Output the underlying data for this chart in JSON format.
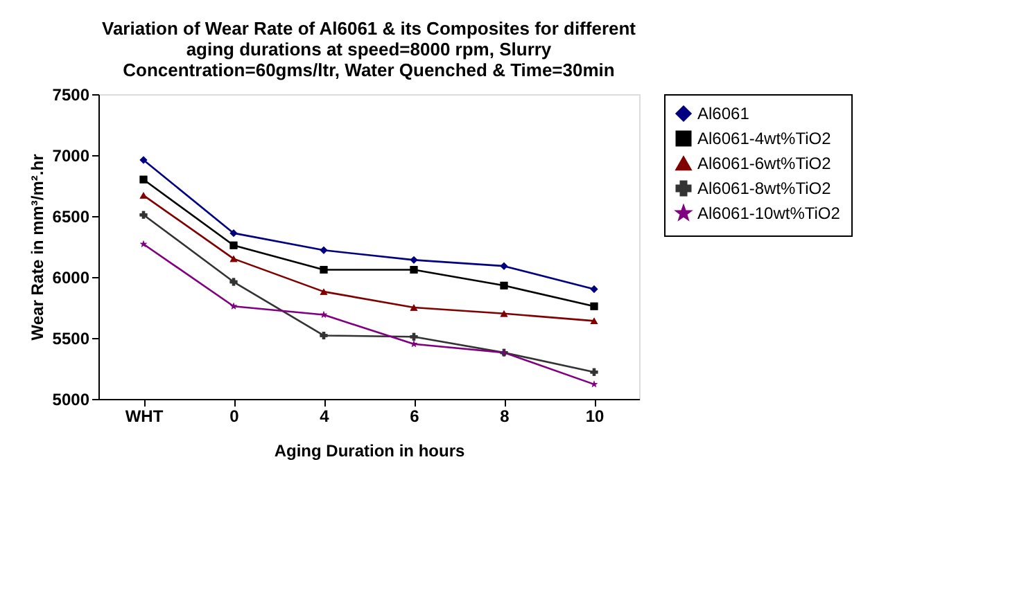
{
  "chart_data": {
    "type": "line",
    "title": "Variation of Wear Rate of Al6061 & its Composites for different aging durations at speed=8000 rpm, Slurry Concentration=60gms/ltr, Water Quenched & Time=30min",
    "xlabel": "Aging Duration in hours",
    "ylabel": "Wear Rate in mm³/m².hr",
    "categories": [
      "WHT",
      "0",
      "4",
      "6",
      "8",
      "10"
    ],
    "ylim": [
      5000,
      7500
    ],
    "yticks": [
      5000,
      5500,
      6000,
      6500,
      7000,
      7500
    ],
    "grid": false,
    "legend": "right",
    "line_style": "solid",
    "series": [
      {
        "name": "Al6061",
        "color": "#000080",
        "marker": "diamond",
        "values": [
          6960,
          6360,
          6220,
          6140,
          6090,
          5900
        ]
      },
      {
        "name": "Al6061-4wt%TiO2",
        "color": "#000000",
        "marker": "square",
        "values": [
          6800,
          6260,
          6060,
          6060,
          5930,
          5760
        ]
      },
      {
        "name": "Al6061-6wt%TiO2",
        "color": "#800000",
        "marker": "triangle",
        "values": [
          6670,
          6150,
          5880,
          5750,
          5700,
          5640
        ]
      },
      {
        "name": "Al6061-8wt%TiO2",
        "color": "#333333",
        "marker": "cross",
        "values": [
          6510,
          5960,
          5520,
          5510,
          5380,
          5220
        ]
      },
      {
        "name": "Al6061-10wt%TiO2",
        "color": "#800080",
        "marker": "star",
        "values": [
          6270,
          5760,
          5690,
          5450,
          5380,
          5120
        ]
      }
    ]
  }
}
